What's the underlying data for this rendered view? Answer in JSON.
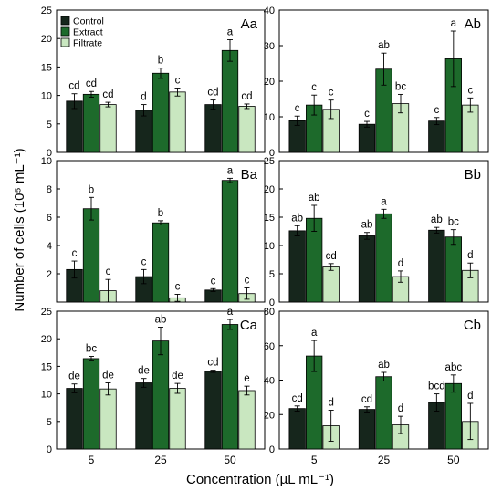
{
  "figure": {
    "ylabel": "Number of cells (10⁵ mL⁻¹)",
    "xlabel": "Concentration (µL mL⁻¹)",
    "legend": {
      "placement": "top-left",
      "entries": [
        "Control",
        "Extract",
        "Filtrate"
      ]
    },
    "colors": {
      "Control": "#16261c",
      "Extract": "#1d6a2b",
      "Filtrate": "#c9e7c0"
    }
  },
  "chart_data": [
    {
      "type": "bar",
      "panel": "Aa",
      "categories": [
        "5",
        "25",
        "50"
      ],
      "ylim": [
        0,
        25
      ],
      "yticks": [
        0,
        5,
        10,
        15,
        20,
        25
      ],
      "series": [
        {
          "name": "Control",
          "values": [
            9.0,
            7.4,
            8.4
          ],
          "errors": [
            1.3,
            1.0,
            0.8
          ],
          "letters": [
            "cd",
            "d",
            "cd"
          ]
        },
        {
          "name": "Extract",
          "values": [
            10.2,
            13.9,
            17.9
          ],
          "errors": [
            0.5,
            0.9,
            1.9
          ],
          "letters": [
            "cd",
            "b",
            "a"
          ]
        },
        {
          "name": "Filtrate",
          "values": [
            8.4,
            10.6,
            8.1
          ],
          "errors": [
            0.4,
            0.7,
            0.4
          ],
          "letters": [
            "cd",
            "c",
            "cd"
          ]
        }
      ]
    },
    {
      "type": "bar",
      "panel": "Ab",
      "categories": [
        "5",
        "25",
        "50"
      ],
      "ylim": [
        0,
        40
      ],
      "yticks": [
        0,
        10,
        20,
        30,
        40
      ],
      "series": [
        {
          "name": "Control",
          "values": [
            8.9,
            7.9,
            8.8
          ],
          "errors": [
            1.3,
            0.8,
            1.0
          ],
          "letters": [
            "c",
            "c",
            "c"
          ]
        },
        {
          "name": "Extract",
          "values": [
            13.3,
            23.4,
            26.3
          ],
          "errors": [
            2.8,
            4.5,
            7.8
          ],
          "letters": [
            "c",
            "ab",
            "a"
          ]
        },
        {
          "name": "Filtrate",
          "values": [
            12.1,
            13.7,
            13.3
          ],
          "errors": [
            2.6,
            2.6,
            2.0
          ],
          "letters": [
            "c",
            "bc",
            "c"
          ]
        }
      ]
    },
    {
      "type": "bar",
      "panel": "Ba",
      "categories": [
        "5",
        "25",
        "50"
      ],
      "ylim": [
        0,
        10
      ],
      "yticks": [
        2,
        4,
        6,
        8,
        10
      ],
      "series": [
        {
          "name": "Control",
          "values": [
            2.3,
            1.8,
            0.85
          ],
          "errors": [
            0.6,
            0.5,
            0.1
          ],
          "letters": [
            "c",
            "c",
            "c"
          ]
        },
        {
          "name": "Extract",
          "values": [
            6.6,
            5.6,
            8.6
          ],
          "errors": [
            0.8,
            0.15,
            0.15
          ],
          "letters": [
            "b",
            "b",
            "a"
          ]
        },
        {
          "name": "Filtrate",
          "values": [
            0.8,
            0.3,
            0.6
          ],
          "errors": [
            0.8,
            0.25,
            0.4
          ],
          "letters": [
            "c",
            "c",
            "c"
          ]
        }
      ]
    },
    {
      "type": "bar",
      "panel": "Bb",
      "categories": [
        "5",
        "25",
        "50"
      ],
      "ylim": [
        0,
        25
      ],
      "yticks": [
        0,
        5,
        10,
        15,
        20,
        25
      ],
      "series": [
        {
          "name": "Control",
          "values": [
            12.6,
            11.7,
            12.7
          ],
          "errors": [
            0.9,
            0.6,
            0.5
          ],
          "letters": [
            "ab",
            "ab",
            "ab"
          ]
        },
        {
          "name": "Extract",
          "values": [
            14.8,
            15.6,
            11.5
          ],
          "errors": [
            2.3,
            0.8,
            1.3
          ],
          "letters": [
            "ab",
            "a",
            "bc"
          ]
        },
        {
          "name": "Filtrate",
          "values": [
            6.2,
            4.5,
            5.6
          ],
          "errors": [
            0.6,
            1.0,
            1.3
          ],
          "letters": [
            "cd",
            "d",
            "d"
          ]
        }
      ]
    },
    {
      "type": "bar",
      "panel": "Ca",
      "categories": [
        "5",
        "25",
        "50"
      ],
      "ylim": [
        0,
        25
      ],
      "yticks": [
        0,
        5,
        10,
        15,
        20,
        25
      ],
      "series": [
        {
          "name": "Control",
          "values": [
            11.0,
            12.0,
            14.1
          ],
          "errors": [
            0.8,
            0.8,
            0.2
          ],
          "letters": [
            "de",
            "de",
            "cd"
          ]
        },
        {
          "name": "Extract",
          "values": [
            16.4,
            19.6,
            22.6
          ],
          "errors": [
            0.4,
            2.5,
            0.9
          ],
          "letters": [
            "bc",
            "ab",
            "a"
          ]
        },
        {
          "name": "Filtrate",
          "values": [
            10.9,
            11.0,
            10.6
          ],
          "errors": [
            1.1,
            0.9,
            0.8
          ],
          "letters": [
            "de",
            "de",
            "e"
          ]
        }
      ]
    },
    {
      "type": "bar",
      "panel": "Cb",
      "categories": [
        "5",
        "25",
        "50"
      ],
      "ylim": [
        0,
        80
      ],
      "yticks": [
        0,
        20,
        40,
        60,
        80
      ],
      "series": [
        {
          "name": "Control",
          "values": [
            23.5,
            23.0,
            27.0
          ],
          "errors": [
            1.5,
            1.5,
            5.0
          ],
          "letters": [
            "cd",
            "cd",
            "bcd"
          ]
        },
        {
          "name": "Extract",
          "values": [
            54.0,
            42.0,
            38.0
          ],
          "errors": [
            9.0,
            2.5,
            5.0
          ],
          "letters": [
            "a",
            "ab",
            "abc"
          ]
        },
        {
          "name": "Filtrate",
          "values": [
            13.5,
            14.0,
            16.0
          ],
          "errors": [
            9.0,
            5.0,
            10.5
          ],
          "letters": [
            "d",
            "d",
            "d"
          ]
        }
      ]
    }
  ]
}
